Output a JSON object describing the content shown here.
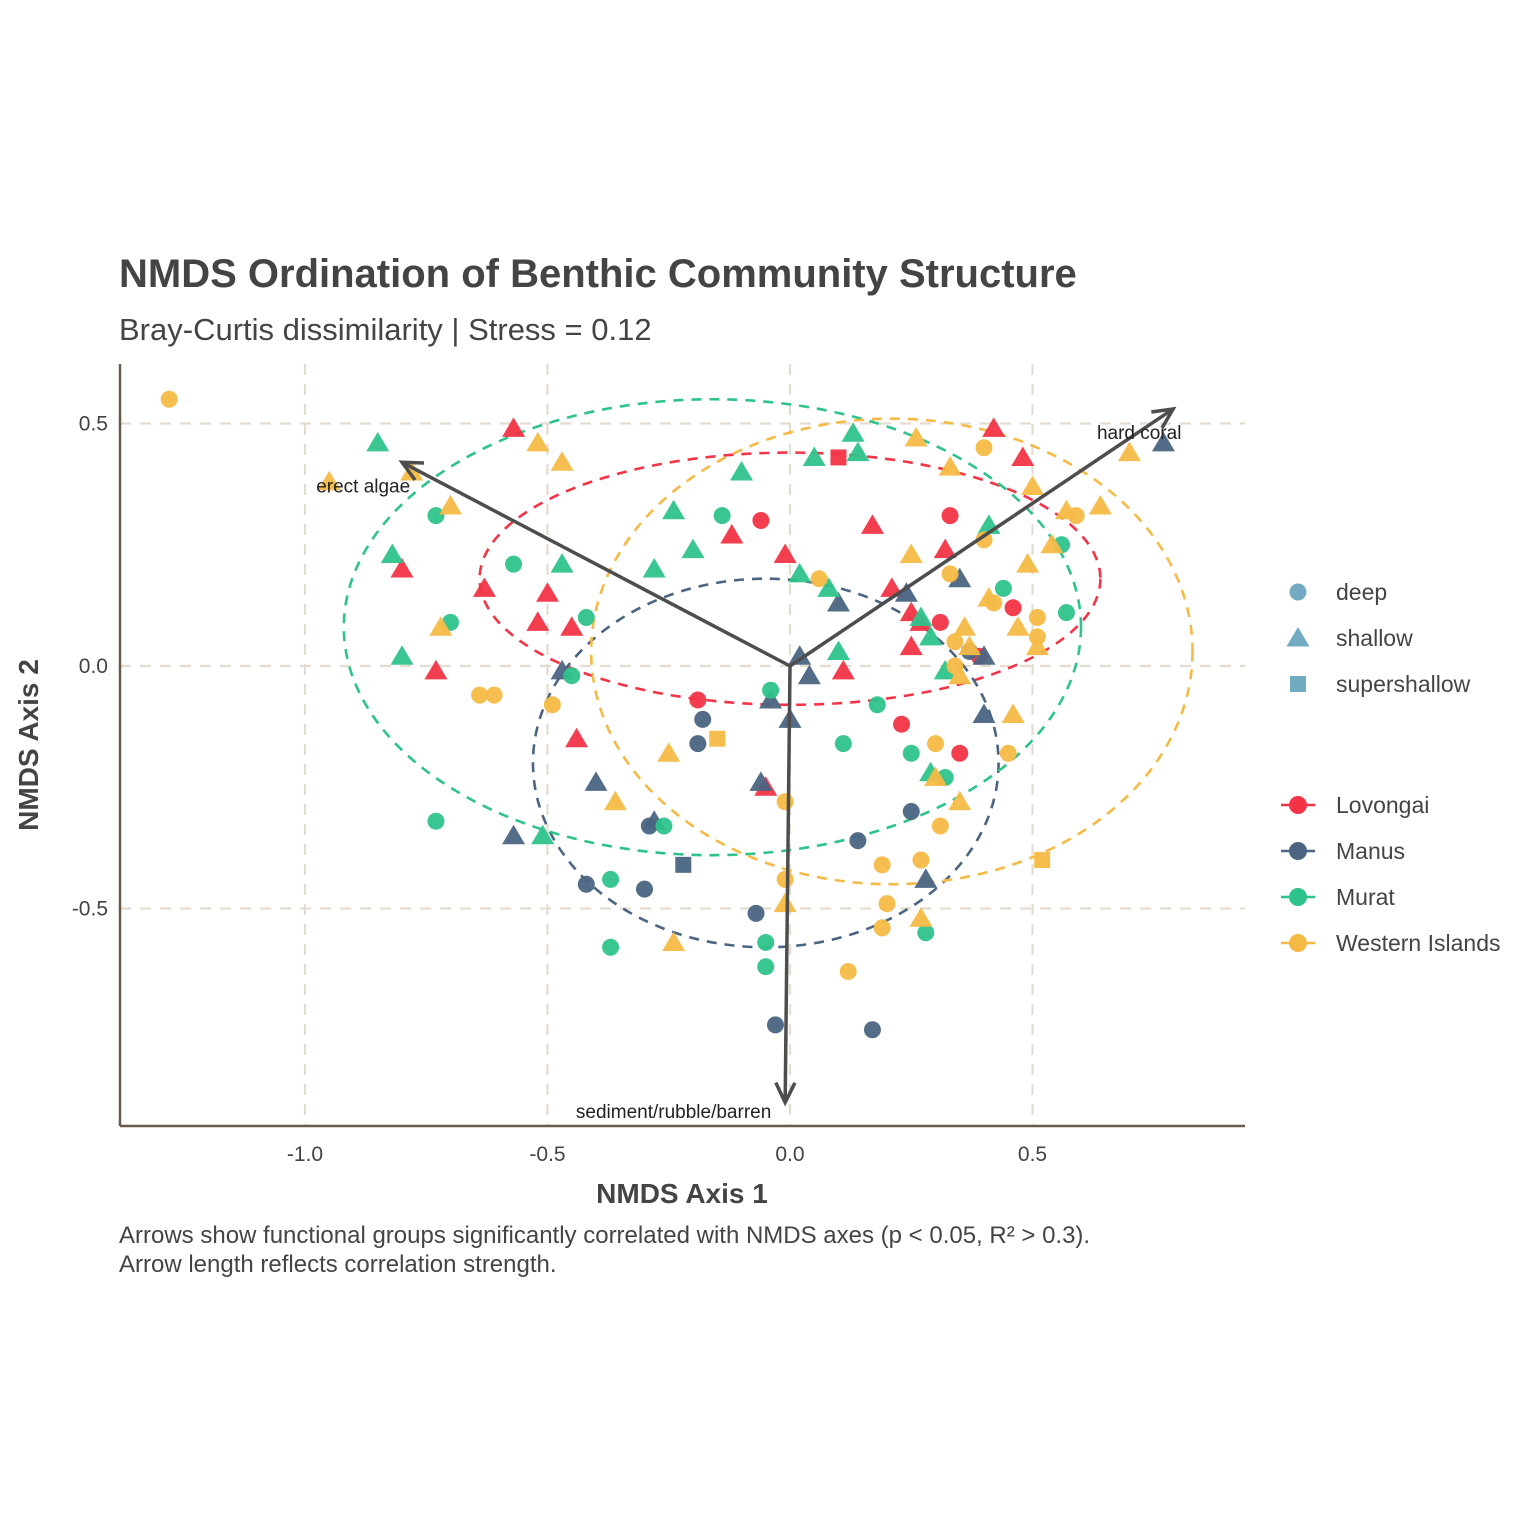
{
  "title": "NMDS Ordination of Benthic Community Structure",
  "subtitle": "Bray-Curtis dissimilarity | Stress = 0.12",
  "caption": [
    "Arrows show functional groups significantly correlated with NMDS axes (p < 0.05, R² > 0.3).",
    "Arrow length reflects correlation strength."
  ],
  "chart_data": {
    "type": "scatter",
    "xlabel": "NMDS Axis 1",
    "ylabel": "NMDS Axis 2",
    "xlim": [
      -1.4,
      0.94
    ],
    "ylim": [
      -0.95,
      0.62
    ],
    "xticks": [
      -1.0,
      -0.5,
      0.0,
      0.5
    ],
    "yticks": [
      -0.5,
      0.0,
      0.5
    ],
    "xtick_labels": [
      "-1.0",
      "-0.5",
      "0.0",
      "0.5"
    ],
    "ytick_labels": [
      "-0.5",
      "0.0",
      "0.5"
    ],
    "grid": "major, dashed",
    "legend_position": "right",
    "shape_legend": [
      {
        "label": "deep",
        "shape": "circle"
      },
      {
        "label": "shallow",
        "shape": "triangle"
      },
      {
        "label": "supershallow",
        "shape": "square"
      }
    ],
    "series": [
      {
        "name": "Lovongai",
        "color": "#F23446",
        "points": [
          [
            -0.57,
            0.49,
            "triangle"
          ],
          [
            -0.8,
            0.2,
            "triangle"
          ],
          [
            -0.73,
            -0.01,
            "triangle"
          ],
          [
            -0.63,
            0.16,
            "triangle"
          ],
          [
            -0.52,
            0.09,
            "triangle"
          ],
          [
            -0.5,
            0.15,
            "triangle"
          ],
          [
            -0.45,
            0.08,
            "triangle"
          ],
          [
            -0.44,
            -0.15,
            "triangle"
          ],
          [
            -0.12,
            0.27,
            "triangle"
          ],
          [
            -0.06,
            0.3,
            "circle"
          ],
          [
            -0.01,
            0.23,
            "triangle"
          ],
          [
            -0.19,
            -0.07,
            "circle"
          ],
          [
            -0.05,
            -0.25,
            "triangle"
          ],
          [
            0.1,
            0.43,
            "square"
          ],
          [
            0.11,
            -0.01,
            "triangle"
          ],
          [
            0.17,
            0.29,
            "triangle"
          ],
          [
            0.21,
            0.16,
            "triangle"
          ],
          [
            0.23,
            -0.12,
            "circle"
          ],
          [
            0.25,
            0.11,
            "triangle"
          ],
          [
            0.25,
            0.04,
            "triangle"
          ],
          [
            0.27,
            0.09,
            "triangle"
          ],
          [
            0.31,
            0.09,
            "circle"
          ],
          [
            0.32,
            0.24,
            "triangle"
          ],
          [
            0.33,
            0.31,
            "circle"
          ],
          [
            0.35,
            -0.18,
            "circle"
          ],
          [
            0.39,
            0.02,
            "circle"
          ],
          [
            0.42,
            0.49,
            "triangle"
          ],
          [
            0.46,
            0.12,
            "circle"
          ],
          [
            0.48,
            0.43,
            "triangle"
          ]
        ]
      },
      {
        "name": "Manus",
        "color": "#4A6482",
        "points": [
          [
            -0.57,
            -0.35,
            "triangle"
          ],
          [
            -0.47,
            -0.01,
            "triangle"
          ],
          [
            -0.4,
            -0.24,
            "triangle"
          ],
          [
            -0.42,
            -0.45,
            "circle"
          ],
          [
            -0.3,
            -0.46,
            "circle"
          ],
          [
            -0.29,
            -0.33,
            "circle"
          ],
          [
            -0.28,
            -0.32,
            "triangle"
          ],
          [
            -0.22,
            -0.41,
            "square"
          ],
          [
            -0.18,
            -0.11,
            "circle"
          ],
          [
            -0.19,
            -0.16,
            "circle"
          ],
          [
            -0.06,
            -0.24,
            "triangle"
          ],
          [
            -0.04,
            -0.07,
            "triangle"
          ],
          [
            -0.07,
            -0.51,
            "circle"
          ],
          [
            -0.03,
            -0.74,
            "circle"
          ],
          [
            0.0,
            -0.11,
            "triangle"
          ],
          [
            0.02,
            0.02,
            "triangle"
          ],
          [
            0.04,
            -0.02,
            "triangle"
          ],
          [
            0.1,
            0.13,
            "triangle"
          ],
          [
            0.14,
            -0.36,
            "circle"
          ],
          [
            0.17,
            -0.75,
            "circle"
          ],
          [
            0.24,
            0.15,
            "triangle"
          ],
          [
            0.25,
            -0.3,
            "circle"
          ],
          [
            0.28,
            -0.44,
            "triangle"
          ],
          [
            0.35,
            0.18,
            "triangle"
          ],
          [
            0.37,
            0.03,
            "circle"
          ],
          [
            0.4,
            0.02,
            "triangle"
          ],
          [
            0.4,
            -0.1,
            "triangle"
          ],
          [
            0.77,
            0.46,
            "triangle"
          ]
        ]
      },
      {
        "name": "Murat",
        "color": "#2EC38B",
        "points": [
          [
            -0.85,
            0.46,
            "triangle"
          ],
          [
            -0.82,
            0.23,
            "triangle"
          ],
          [
            -0.8,
            0.02,
            "triangle"
          ],
          [
            -0.73,
            0.31,
            "circle"
          ],
          [
            -0.7,
            0.09,
            "circle"
          ],
          [
            -0.73,
            -0.32,
            "circle"
          ],
          [
            -0.57,
            0.21,
            "circle"
          ],
          [
            -0.47,
            0.21,
            "triangle"
          ],
          [
            -0.42,
            0.1,
            "circle"
          ],
          [
            -0.45,
            -0.02,
            "circle"
          ],
          [
            -0.51,
            -0.35,
            "triangle"
          ],
          [
            -0.37,
            -0.44,
            "circle"
          ],
          [
            -0.37,
            -0.58,
            "circle"
          ],
          [
            -0.26,
            -0.33,
            "circle"
          ],
          [
            -0.24,
            0.32,
            "triangle"
          ],
          [
            -0.2,
            0.24,
            "triangle"
          ],
          [
            -0.28,
            0.2,
            "triangle"
          ],
          [
            -0.14,
            0.31,
            "circle"
          ],
          [
            -0.1,
            0.4,
            "triangle"
          ],
          [
            0.02,
            0.19,
            "triangle"
          ],
          [
            0.05,
            0.43,
            "triangle"
          ],
          [
            0.08,
            0.16,
            "triangle"
          ],
          [
            0.1,
            0.03,
            "triangle"
          ],
          [
            0.13,
            0.48,
            "triangle"
          ],
          [
            0.14,
            0.44,
            "triangle"
          ],
          [
            0.11,
            -0.16,
            "circle"
          ],
          [
            0.18,
            -0.08,
            "circle"
          ],
          [
            -0.04,
            -0.05,
            "circle"
          ],
          [
            -0.05,
            -0.57,
            "circle"
          ],
          [
            -0.05,
            -0.62,
            "circle"
          ],
          [
            0.25,
            -0.18,
            "circle"
          ],
          [
            0.27,
            0.1,
            "triangle"
          ],
          [
            0.29,
            0.06,
            "triangle"
          ],
          [
            0.32,
            -0.23,
            "circle"
          ],
          [
            0.32,
            -0.01,
            "triangle"
          ],
          [
            0.28,
            -0.55,
            "circle"
          ],
          [
            0.29,
            -0.22,
            "triangle"
          ],
          [
            0.41,
            0.29,
            "triangle"
          ],
          [
            0.44,
            0.16,
            "circle"
          ],
          [
            0.56,
            0.25,
            "circle"
          ],
          [
            0.57,
            0.11,
            "circle"
          ]
        ]
      },
      {
        "name": "Western Islands",
        "color": "#F5BA46",
        "points": [
          [
            -1.28,
            0.55,
            "circle"
          ],
          [
            -0.95,
            0.38,
            "triangle"
          ],
          [
            -0.78,
            0.4,
            "triangle"
          ],
          [
            -0.7,
            0.33,
            "triangle"
          ],
          [
            -0.72,
            0.08,
            "triangle"
          ],
          [
            -0.64,
            -0.06,
            "circle"
          ],
          [
            -0.61,
            -0.06,
            "circle"
          ],
          [
            -0.52,
            0.46,
            "triangle"
          ],
          [
            -0.47,
            0.42,
            "triangle"
          ],
          [
            -0.49,
            -0.08,
            "circle"
          ],
          [
            -0.36,
            -0.28,
            "triangle"
          ],
          [
            -0.25,
            -0.18,
            "triangle"
          ],
          [
            -0.24,
            -0.57,
            "triangle"
          ],
          [
            -0.15,
            -0.15,
            "square"
          ],
          [
            -0.01,
            -0.28,
            "circle"
          ],
          [
            -0.01,
            -0.44,
            "circle"
          ],
          [
            -0.01,
            -0.49,
            "triangle"
          ],
          [
            0.06,
            0.18,
            "circle"
          ],
          [
            0.12,
            -0.63,
            "circle"
          ],
          [
            0.19,
            -0.41,
            "circle"
          ],
          [
            0.19,
            -0.54,
            "circle"
          ],
          [
            0.2,
            -0.49,
            "circle"
          ],
          [
            0.25,
            0.23,
            "triangle"
          ],
          [
            0.26,
            0.47,
            "triangle"
          ],
          [
            0.27,
            -0.4,
            "circle"
          ],
          [
            0.27,
            -0.52,
            "triangle"
          ],
          [
            0.3,
            -0.23,
            "triangle"
          ],
          [
            0.3,
            -0.16,
            "circle"
          ],
          [
            0.31,
            -0.33,
            "circle"
          ],
          [
            0.33,
            0.19,
            "circle"
          ],
          [
            0.33,
            0.41,
            "triangle"
          ],
          [
            0.34,
            0.05,
            "circle"
          ],
          [
            0.34,
            0.0,
            "circle"
          ],
          [
            0.35,
            -0.02,
            "triangle"
          ],
          [
            0.35,
            -0.28,
            "triangle"
          ],
          [
            0.36,
            0.08,
            "triangle"
          ],
          [
            0.37,
            0.04,
            "triangle"
          ],
          [
            0.4,
            0.26,
            "circle"
          ],
          [
            0.4,
            0.45,
            "circle"
          ],
          [
            0.41,
            0.14,
            "triangle"
          ],
          [
            0.42,
            0.13,
            "circle"
          ],
          [
            0.45,
            -0.18,
            "circle"
          ],
          [
            0.46,
            -0.1,
            "triangle"
          ],
          [
            0.47,
            0.08,
            "triangle"
          ],
          [
            0.49,
            0.21,
            "triangle"
          ],
          [
            0.5,
            0.37,
            "triangle"
          ],
          [
            0.51,
            0.1,
            "circle"
          ],
          [
            0.51,
            0.06,
            "circle"
          ],
          [
            0.51,
            0.04,
            "triangle"
          ],
          [
            0.52,
            -0.4,
            "square"
          ],
          [
            0.54,
            0.25,
            "triangle"
          ],
          [
            0.57,
            0.32,
            "triangle"
          ],
          [
            0.59,
            0.31,
            "circle"
          ],
          [
            0.64,
            0.33,
            "triangle"
          ],
          [
            0.7,
            0.44,
            "triangle"
          ]
        ]
      }
    ],
    "ellipses": [
      {
        "group": "Lovongai",
        "color": "#F23446",
        "center": [
          0.0,
          0.18
        ],
        "rx": 0.64,
        "ry": 0.26
      },
      {
        "group": "Manus",
        "color": "#4A6482",
        "center": [
          -0.05,
          -0.2
        ],
        "rx": 0.48,
        "ry": 0.38
      },
      {
        "group": "Murat",
        "color": "#2EC38B",
        "center": [
          -0.16,
          0.08
        ],
        "rx": 0.76,
        "ry": 0.47
      },
      {
        "group": "Western Islands",
        "color": "#F5BA46",
        "center": [
          0.21,
          0.03
        ],
        "rx": 0.62,
        "ry": 0.48
      }
    ],
    "arrows": [
      {
        "label": "erect algae",
        "to": [
          -0.8,
          0.42
        ],
        "label_at": [
          -0.88,
          0.37
        ]
      },
      {
        "label": "hard coral",
        "to": [
          0.79,
          0.53
        ],
        "label_at": [
          0.72,
          0.48
        ]
      },
      {
        "label": "sediment/rubble/barren",
        "to": [
          -0.01,
          -0.9
        ],
        "label_at": [
          -0.24,
          -0.92
        ]
      }
    ],
    "arrow_color": "#4D4D4D"
  }
}
